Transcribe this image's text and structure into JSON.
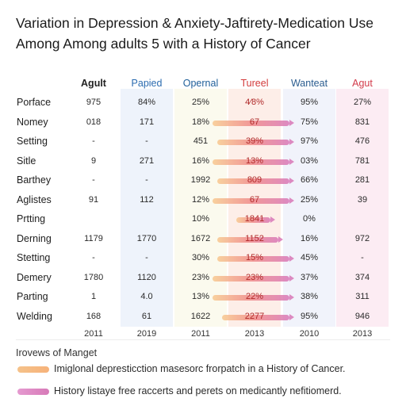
{
  "title_line1": "Variation in Depression & Anxiety-Jaftirety-Medication Use",
  "title_line2": "Among Among adults 5 with a History of Cancer",
  "chart_data": {
    "type": "table",
    "columns": [
      {
        "label": "Agult",
        "color": "#222222",
        "band": "#ffffff"
      },
      {
        "label": "Papied",
        "color": "#2b6cb0",
        "band": "#eef3fb"
      },
      {
        "label": "Opernal",
        "color": "#1f5f99",
        "band": "#fbfaee"
      },
      {
        "label": "Tureel",
        "color": "#d33a3a",
        "band": "#fdeee8"
      },
      {
        "label": "Wanteat",
        "color": "#2a5c8f",
        "band": "#f1f3fb"
      },
      {
        "label": "Agut",
        "color": "#d23a4a",
        "band": "#fcecf3"
      }
    ],
    "rows": [
      {
        "label": "Porface",
        "cells": [
          "975",
          "84%",
          "25%",
          "4⁄8%",
          "95%",
          "27%"
        ],
        "bar": null
      },
      {
        "label": "Nomey",
        "cells": [
          "018",
          "171",
          "18%",
          "67",
          "75%",
          "831"
        ],
        "bar": {
          "from": 0,
          "to": 0.82
        }
      },
      {
        "label": "Setting",
        "cells": [
          "-",
          "-",
          "451",
          "39%",
          "97%",
          "476"
        ],
        "bar": {
          "from": 0.05,
          "to": 0.82
        }
      },
      {
        "label": "Sitle",
        "cells": [
          "9",
          "271",
          "16%",
          "13%",
          "03%",
          "781"
        ],
        "bar": {
          "from": 0,
          "to": 0.82
        }
      },
      {
        "label": "Barthey",
        "cells": [
          "-",
          "-",
          "1992",
          "809",
          "66%",
          "281"
        ],
        "bar": {
          "from": 0.05,
          "to": 0.82
        }
      },
      {
        "label": "Aglistes",
        "cells": [
          "91",
          "112",
          "12%",
          "67",
          "25%",
          "39"
        ],
        "bar": {
          "from": 0,
          "to": 0.82
        }
      },
      {
        "label": "Prtting",
        "cells": [
          "",
          "",
          "10%",
          "1841",
          "0%",
          ""
        ],
        "bar": {
          "from": 0.25,
          "to": 0.62
        }
      },
      {
        "label": "Derning",
        "cells": [
          "1179",
          "1770",
          "1672",
          "1152",
          "16%",
          "972"
        ],
        "bar": {
          "from": 0.05,
          "to": 0.7
        }
      },
      {
        "label": "Stetting",
        "cells": [
          "-",
          "-",
          "30%",
          "15%",
          "45%",
          "-"
        ],
        "bar": {
          "from": 0.05,
          "to": 0.82
        }
      },
      {
        "label": "Demery",
        "cells": [
          "1780",
          "1120",
          "23%",
          "23%",
          "37%",
          "374"
        ],
        "bar": {
          "from": 0,
          "to": 0.82
        }
      },
      {
        "label": "Parting",
        "cells": [
          "1",
          "4.0",
          "13%",
          "22%",
          "38%",
          "311"
        ],
        "bar": {
          "from": 0,
          "to": 0.82
        }
      },
      {
        "label": "Welding",
        "cells": [
          "168",
          "61",
          "1622",
          "2277",
          "95%",
          "946"
        ],
        "bar": {
          "from": 0.1,
          "to": 0.82
        }
      }
    ],
    "x_ticks": [
      "2011",
      "2019",
      "2011",
      "2013",
      "2010",
      "2013"
    ],
    "legend_title": "Irovews of Manget",
    "legend": [
      {
        "label": "Imiglonal depresticction masesorc frorpatch in a History of Cancer.",
        "color": "#f5c28a"
      },
      {
        "label": "History listaye free raccerts and perets on medicantly nefitiomerd.",
        "color": "#d77ab8"
      }
    ],
    "bar_gradient": [
      "#f8c98f",
      "#f08a8a",
      "#d978b8"
    ]
  }
}
